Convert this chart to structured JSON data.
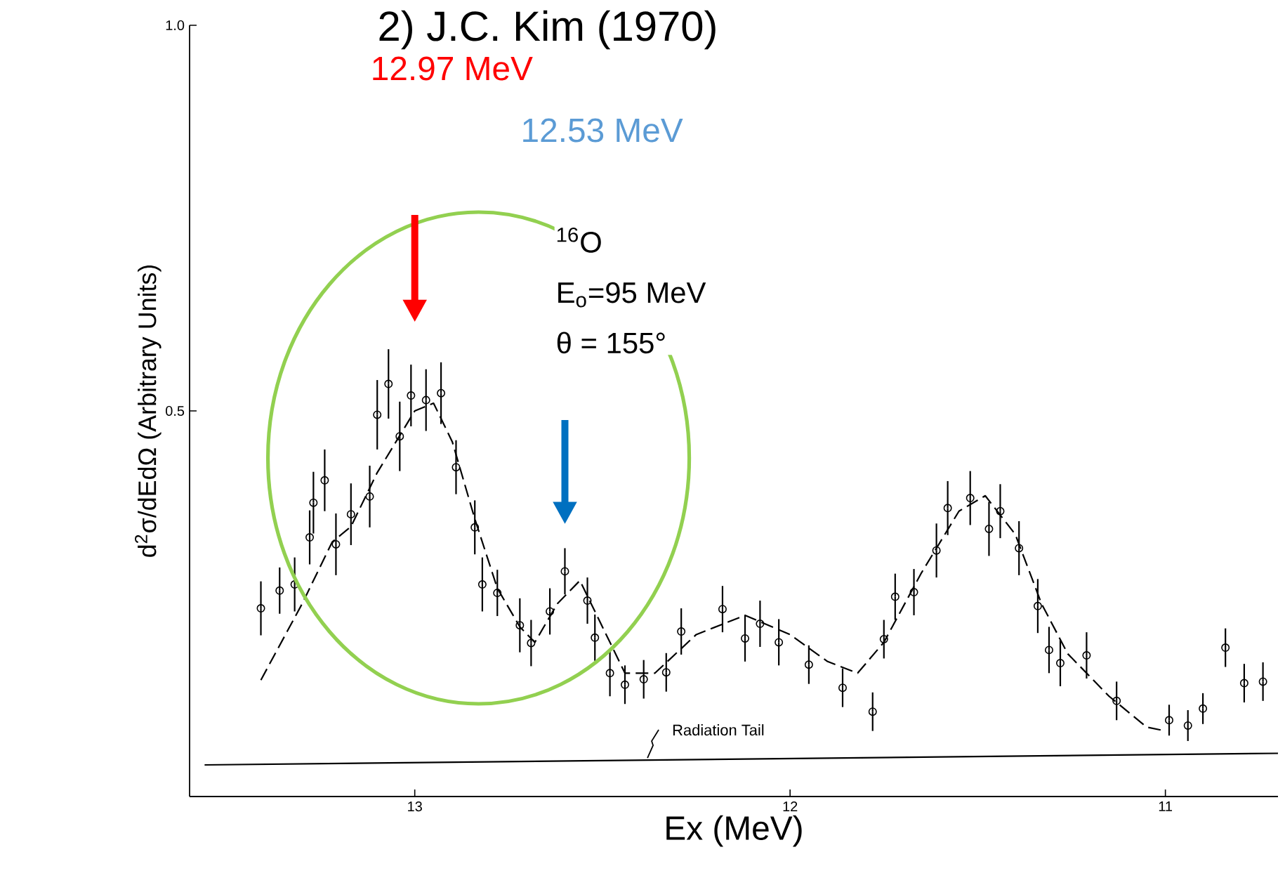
{
  "chart_data": {
    "type": "scatter",
    "title": "2) J.C. Kim (1970)",
    "xlabel": "Ex (MeV)",
    "ylabel": "d$^{2}$σ/dEdΩ (Arbitrary Units)",
    "xlim": [
      13.6,
      10.7
    ],
    "xticks": [
      13,
      12,
      11
    ],
    "ylim": [
      0.0,
      1.0
    ],
    "yticks": [
      {
        "value": 0.5,
        "label": "0.5"
      },
      {
        "value": 1.0,
        "label": "1.0"
      }
    ],
    "tick_labels": [
      "x",
      "y"
    ],
    "grid": false,
    "marker": "circle",
    "series": [
      {
        "color": "#000000",
        "x": [
          13.41,
          13.36,
          13.32,
          13.28,
          13.27,
          13.24,
          13.21,
          13.17,
          13.12,
          13.1,
          13.07,
          13.04,
          13.01,
          12.97,
          12.93,
          12.89,
          12.84,
          12.82,
          12.78,
          12.72,
          12.69,
          12.64,
          12.6,
          12.54,
          12.52,
          12.48,
          12.44,
          12.39,
          12.33,
          12.29,
          12.18,
          12.12,
          12.08,
          12.03,
          11.95,
          11.86,
          11.78,
          11.75,
          11.72,
          11.67,
          11.61,
          11.58,
          11.52,
          11.47,
          11.44,
          11.39,
          11.34,
          11.31,
          11.28,
          11.21,
          11.13,
          10.99,
          10.94,
          10.9,
          10.84,
          10.79,
          10.74
        ],
        "values": [
          0.244,
          0.267,
          0.275,
          0.336,
          0.381,
          0.41,
          0.327,
          0.366,
          0.389,
          0.495,
          0.535,
          0.467,
          0.52,
          0.514,
          0.523,
          0.427,
          0.349,
          0.275,
          0.264,
          0.222,
          0.199,
          0.24,
          0.292,
          0.254,
          0.206,
          0.16,
          0.145,
          0.152,
          0.161,
          0.214,
          0.243,
          0.205,
          0.224,
          0.2,
          0.171,
          0.141,
          0.11,
          0.204,
          0.259,
          0.265,
          0.319,
          0.374,
          0.387,
          0.347,
          0.37,
          0.322,
          0.247,
          0.19,
          0.173,
          0.183,
          0.124,
          0.099,
          0.092,
          0.114,
          0.193,
          0.147,
          0.149
        ],
        "errors": [
          0.035,
          0.03,
          0.035,
          0.035,
          0.04,
          0.04,
          0.04,
          0.04,
          0.04,
          0.045,
          0.045,
          0.045,
          0.04,
          0.04,
          0.04,
          0.035,
          0.035,
          0.035,
          0.03,
          0.035,
          0.03,
          0.03,
          0.03,
          0.03,
          0.03,
          0.03,
          0.025,
          0.025,
          0.025,
          0.03,
          0.03,
          0.03,
          0.03,
          0.03,
          0.025,
          0.025,
          0.025,
          0.025,
          0.03,
          0.03,
          0.035,
          0.035,
          0.035,
          0.035,
          0.035,
          0.035,
          0.035,
          0.03,
          0.03,
          0.03,
          0.025,
          0.02,
          0.02,
          0.02,
          0.025,
          0.025,
          0.025
        ]
      },
      {
        "type": "line",
        "color": "#000000",
        "line_style": "dashed",
        "marker": "none",
        "x": [
          13.41,
          13.3,
          13.22,
          13.17,
          13.1,
          13.05,
          13.0,
          12.95,
          12.9,
          12.84,
          12.78,
          12.72,
          12.68,
          12.62,
          12.56,
          12.5,
          12.44,
          12.36,
          12.25,
          12.12,
          12.0,
          11.9,
          11.82,
          11.75,
          11.65,
          11.55,
          11.48,
          11.4,
          11.33,
          11.26,
          11.15,
          11.05,
          11.0
        ],
        "values": [
          0.151,
          0.25,
          0.33,
          0.35,
          0.42,
          0.46,
          0.5,
          0.51,
          0.46,
          0.36,
          0.27,
          0.22,
          0.2,
          0.25,
          0.28,
          0.22,
          0.16,
          0.16,
          0.21,
          0.235,
          0.21,
          0.175,
          0.16,
          0.2,
          0.29,
          0.37,
          0.39,
          0.34,
          0.25,
          0.185,
          0.13,
          0.09,
          0.085
        ]
      },
      {
        "type": "line",
        "color": "#000000",
        "line_style": "solid",
        "marker": "none",
        "x": [
          13.56,
          10.7
        ],
        "values": [
          0.041,
          0.056
        ]
      }
    ],
    "annotations": [
      "12.97 MeV",
      "12.53 MeV",
      "$^{16}$O",
      "E$_{o}$=95 MeV",
      "θ = 155°",
      {
        "text": "Radiation Tail",
        "x": 12.38,
        "y": 0.05
      }
    ]
  }
}
